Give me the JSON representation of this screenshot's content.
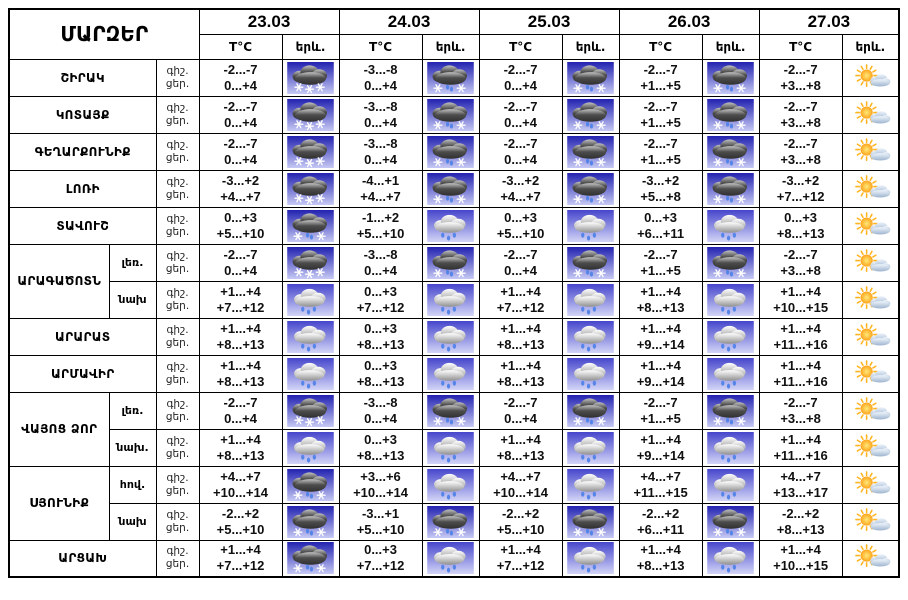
{
  "chart_data": {
    "type": "table",
    "corner_label": "ՄԱՐԶԵՐ",
    "dates": [
      "23.03",
      "24.03",
      "25.03",
      "26.03",
      "27.03"
    ],
    "temp_header": "T°C",
    "weather_header": "երև.",
    "night_label": "գիշ.",
    "day_label": "ցեր.",
    "icon_types": {
      "snow": "dark cloud with snowflakes",
      "sleet": "dark cloud with snowflakes and raindrops",
      "rain": "gray cloud with raindrops",
      "sun": "sun with small cloud"
    },
    "regions": [
      {
        "name": "ՇԻՐԱԿ",
        "rows": [
          {
            "sub": null,
            "cells": [
              {
                "night": "-2...-7",
                "day": "0...+4",
                "icon": "snow"
              },
              {
                "night": "-3...-8",
                "day": "0...+4",
                "icon": "sleet"
              },
              {
                "night": "-2...-7",
                "day": "0...+4",
                "icon": "sleet"
              },
              {
                "night": "-2...-7",
                "day": "+1...+5",
                "icon": "sleet"
              },
              {
                "night": "-2...-7",
                "day": "+3...+8",
                "icon": "sun"
              }
            ]
          }
        ]
      },
      {
        "name": "ԿՈՏԱՅՔ",
        "rows": [
          {
            "sub": null,
            "cells": [
              {
                "night": "-2...-7",
                "day": "0...+4",
                "icon": "snow"
              },
              {
                "night": "-3...-8",
                "day": "0...+4",
                "icon": "sleet"
              },
              {
                "night": "-2...-7",
                "day": "0...+4",
                "icon": "sleet"
              },
              {
                "night": "-2...-7",
                "day": "+1...+5",
                "icon": "sleet"
              },
              {
                "night": "-2...-7",
                "day": "+3...+8",
                "icon": "sun"
              }
            ]
          }
        ]
      },
      {
        "name": "ԳԵՂԱՐՔՈՒՆԻՔ",
        "rows": [
          {
            "sub": null,
            "cells": [
              {
                "night": "-2...-7",
                "day": "0...+4",
                "icon": "snow"
              },
              {
                "night": "-3...-8",
                "day": "0...+4",
                "icon": "sleet"
              },
              {
                "night": "-2...-7",
                "day": "0...+4",
                "icon": "sleet"
              },
              {
                "night": "-2...-7",
                "day": "+1...+5",
                "icon": "sleet"
              },
              {
                "night": "-2...-7",
                "day": "+3...+8",
                "icon": "sun"
              }
            ]
          }
        ]
      },
      {
        "name": "ԼՈՌԻ",
        "rows": [
          {
            "sub": null,
            "cells": [
              {
                "night": "-3...+2",
                "day": "+4...+7",
                "icon": "snow"
              },
              {
                "night": "-4...+1",
                "day": "+4...+7",
                "icon": "sleet"
              },
              {
                "night": "-3...+2",
                "day": "+4...+7",
                "icon": "sleet"
              },
              {
                "night": "-3...+2",
                "day": "+5...+8",
                "icon": "sleet"
              },
              {
                "night": "-3...+2",
                "day": "+7...+12",
                "icon": "sun"
              }
            ]
          }
        ]
      },
      {
        "name": "ՏԱՎՈՒՇ",
        "rows": [
          {
            "sub": null,
            "cells": [
              {
                "night": "0...+3",
                "day": "+5...+10",
                "icon": "sleet"
              },
              {
                "night": "-1...+2",
                "day": "+5...+10",
                "icon": "rain"
              },
              {
                "night": "0...+3",
                "day": "+5...+10",
                "icon": "rain"
              },
              {
                "night": "0...+3",
                "day": "+6...+11",
                "icon": "rain"
              },
              {
                "night": "0...+3",
                "day": "+8...+13",
                "icon": "sun"
              }
            ]
          }
        ]
      },
      {
        "name": "ԱՐԱԳԱԾՈՏՆ",
        "rows": [
          {
            "sub": "լեռ.",
            "cells": [
              {
                "night": "-2...-7",
                "day": "0...+4",
                "icon": "snow"
              },
              {
                "night": "-3...-8",
                "day": "0...+4",
                "icon": "sleet"
              },
              {
                "night": "-2...-7",
                "day": "0...+4",
                "icon": "sleet"
              },
              {
                "night": "-2...-7",
                "day": "+1...+5",
                "icon": "sleet"
              },
              {
                "night": "-2...-7",
                "day": "+3...+8",
                "icon": "sun"
              }
            ]
          },
          {
            "sub": "նախ",
            "cells": [
              {
                "night": "+1...+4",
                "day": "+7...+12",
                "icon": "rain"
              },
              {
                "night": "0...+3",
                "day": "+7...+12",
                "icon": "rain"
              },
              {
                "night": "+1...+4",
                "day": "+7...+12",
                "icon": "rain"
              },
              {
                "night": "+1...+4",
                "day": "+8...+13",
                "icon": "rain"
              },
              {
                "night": "+1...+4",
                "day": "+10...+15",
                "icon": "sun"
              }
            ]
          }
        ]
      },
      {
        "name": "ԱՐԱՐԱՏ",
        "rows": [
          {
            "sub": null,
            "cells": [
              {
                "night": "+1...+4",
                "day": "+8...+13",
                "icon": "rain"
              },
              {
                "night": "0...+3",
                "day": "+8...+13",
                "icon": "rain"
              },
              {
                "night": "+1...+4",
                "day": "+8...+13",
                "icon": "rain"
              },
              {
                "night": "+1...+4",
                "day": "+9...+14",
                "icon": "rain"
              },
              {
                "night": "+1...+4",
                "day": "+11...+16",
                "icon": "sun"
              }
            ]
          }
        ]
      },
      {
        "name": "ԱՐՄԱՎԻՐ",
        "rows": [
          {
            "sub": null,
            "cells": [
              {
                "night": "+1...+4",
                "day": "+8...+13",
                "icon": "rain"
              },
              {
                "night": "0...+3",
                "day": "+8...+13",
                "icon": "rain"
              },
              {
                "night": "+1...+4",
                "day": "+8...+13",
                "icon": "rain"
              },
              {
                "night": "+1...+4",
                "day": "+9...+14",
                "icon": "rain"
              },
              {
                "night": "+1...+4",
                "day": "+11...+16",
                "icon": "sun"
              }
            ]
          }
        ]
      },
      {
        "name": "ՎԱՅՈՑ ՁՈՐ",
        "rows": [
          {
            "sub": "լեռ.",
            "cells": [
              {
                "night": "-2...-7",
                "day": "0...+4",
                "icon": "snow"
              },
              {
                "night": "-3...-8",
                "day": "0...+4",
                "icon": "sleet"
              },
              {
                "night": "-2...-7",
                "day": "0...+4",
                "icon": "sleet"
              },
              {
                "night": "-2...-7",
                "day": "+1...+5",
                "icon": "sleet"
              },
              {
                "night": "-2...-7",
                "day": "+3...+8",
                "icon": "sun"
              }
            ]
          },
          {
            "sub": "նախ.",
            "cells": [
              {
                "night": "+1...+4",
                "day": "+8...+13",
                "icon": "rain"
              },
              {
                "night": "0...+3",
                "day": "+8...+13",
                "icon": "rain"
              },
              {
                "night": "+1...+4",
                "day": "+8...+13",
                "icon": "rain"
              },
              {
                "night": "+1...+4",
                "day": "+9...+14",
                "icon": "rain"
              },
              {
                "night": "+1...+4",
                "day": "+11...+16",
                "icon": "sun"
              }
            ]
          }
        ]
      },
      {
        "name": "ՍՅՈՒՆԻՔ",
        "rows": [
          {
            "sub": "հով.",
            "cells": [
              {
                "night": "+4...+7",
                "day": "+10...+14",
                "icon": "sleet"
              },
              {
                "night": "+3...+6",
                "day": "+10...+14",
                "icon": "rain"
              },
              {
                "night": "+4...+7",
                "day": "+10...+14",
                "icon": "rain"
              },
              {
                "night": "+4...+7",
                "day": "+11...+15",
                "icon": "rain"
              },
              {
                "night": "+4...+7",
                "day": "+13...+17",
                "icon": "sun"
              }
            ]
          },
          {
            "sub": "նախ",
            "cells": [
              {
                "night": "-2...+2",
                "day": "+5...+10",
                "icon": "sleet"
              },
              {
                "night": "-3...+1",
                "day": "+5...+10",
                "icon": "sleet"
              },
              {
                "night": "-2...+2",
                "day": "+5...+10",
                "icon": "sleet"
              },
              {
                "night": "-2...+2",
                "day": "+6...+11",
                "icon": "sleet"
              },
              {
                "night": "-2...+2",
                "day": "+8...+13",
                "icon": "sun"
              }
            ]
          }
        ]
      },
      {
        "name": "ԱՐՑԱԽ",
        "rows": [
          {
            "sub": null,
            "cells": [
              {
                "night": "+1...+4",
                "day": "+7...+12",
                "icon": "sleet"
              },
              {
                "night": "0...+3",
                "day": "+7...+12",
                "icon": "rain"
              },
              {
                "night": "+1...+4",
                "day": "+7...+12",
                "icon": "rain"
              },
              {
                "night": "+1...+4",
                "day": "+8...+13",
                "icon": "rain"
              },
              {
                "night": "+1...+4",
                "day": "+10...+15",
                "icon": "sun"
              }
            ]
          }
        ]
      }
    ]
  },
  "colors": {
    "border": "#000000",
    "text": "#000000",
    "icon_sky_top": "#2222b0",
    "icon_sky_bottom": "#c6c9f4",
    "rain_sky_top": "#4646cc",
    "raindrop": "#5585e8",
    "snowflake": "#ffffff",
    "sun": "#ffaa00"
  }
}
